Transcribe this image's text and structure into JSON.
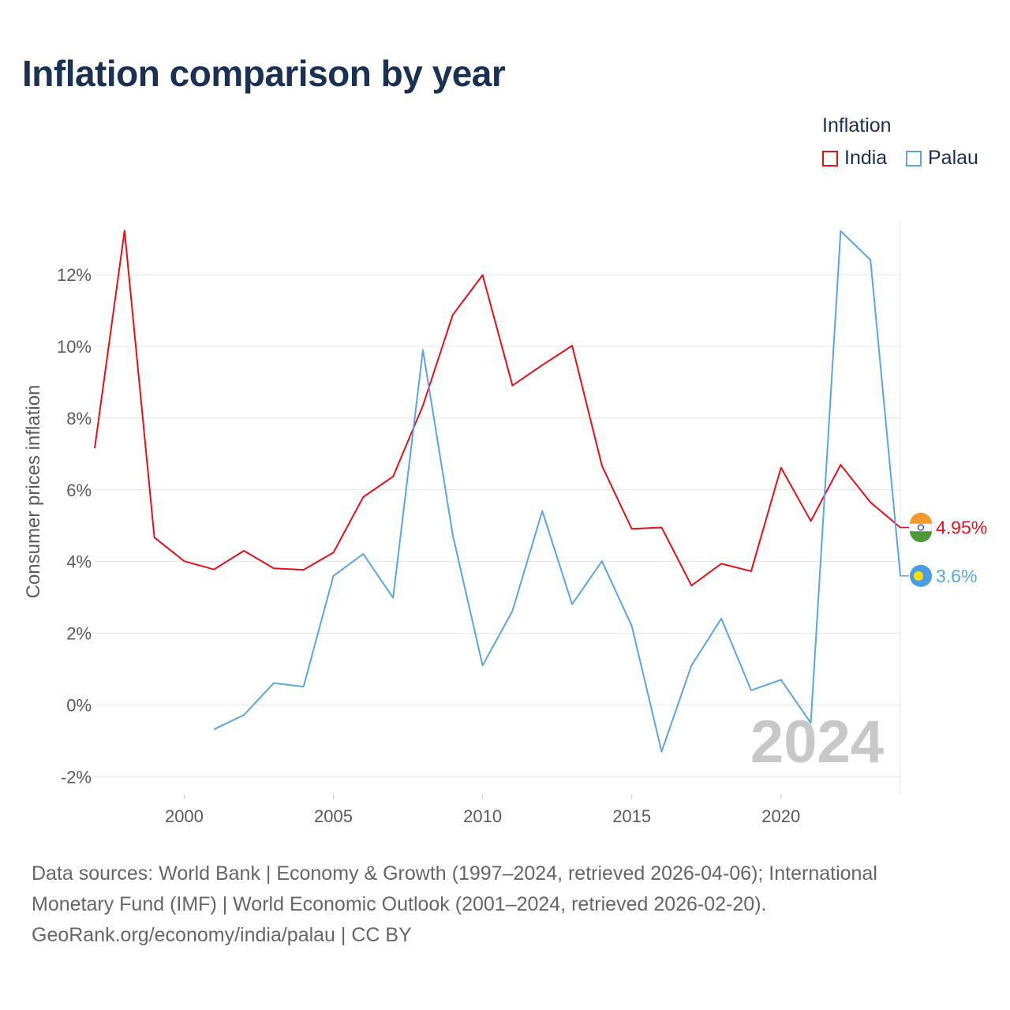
{
  "title": "Inflation comparison by year",
  "legend": {
    "title": "Inflation",
    "items": [
      {
        "label": "India",
        "color": "#e8101a"
      },
      {
        "label": "Palau",
        "color": "#5aa5e6"
      }
    ]
  },
  "year_watermark": "2024",
  "footer": {
    "line1": "Data sources: World Bank | Economy & Growth (1997–2024, retrieved 2026-04-06); International",
    "line2": "Monetary Fund (IMF) | World Economic Outlook (2001–2024, retrieved 2026-02-20).",
    "line3": "GeoRank.org/economy/india/palau | CC BY"
  },
  "chart_data": {
    "type": "line",
    "title": "Inflation comparison by year",
    "xlabel": "",
    "ylabel": "Consumer prices inflation",
    "xlim": [
      1997,
      2024
    ],
    "ylim": [
      -2.5,
      13.5
    ],
    "x_ticks": [
      2000,
      2005,
      2010,
      2015,
      2020
    ],
    "y_ticks": [
      {
        "value": -2,
        "label": "-2%"
      },
      {
        "value": 0,
        "label": "0%"
      },
      {
        "value": 2,
        "label": "2%"
      },
      {
        "value": 4,
        "label": "4%"
      },
      {
        "value": 6,
        "label": "6%"
      },
      {
        "value": 8,
        "label": "8%"
      },
      {
        "value": 10,
        "label": "10%"
      },
      {
        "value": 12,
        "label": "12%"
      }
    ],
    "grid": true,
    "series": [
      {
        "name": "India",
        "color": "#e8101a",
        "end_label": "4.95%",
        "x": [
          1997,
          1998,
          1999,
          2000,
          2001,
          2002,
          2003,
          2004,
          2005,
          2006,
          2007,
          2008,
          2009,
          2010,
          2011,
          2012,
          2013,
          2014,
          2015,
          2016,
          2017,
          2018,
          2019,
          2020,
          2021,
          2022,
          2023,
          2024
        ],
        "values": [
          7.16,
          13.23,
          4.67,
          4.01,
          3.78,
          4.3,
          3.81,
          3.77,
          4.25,
          5.8,
          6.37,
          8.35,
          10.88,
          11.99,
          8.91,
          9.48,
          10.02,
          6.67,
          4.91,
          4.95,
          3.33,
          3.94,
          3.73,
          6.62,
          5.13,
          6.7,
          5.65,
          4.95
        ]
      },
      {
        "name": "Palau",
        "color": "#5aa5e6",
        "end_label": "3.6%",
        "x": [
          2001,
          2002,
          2003,
          2004,
          2005,
          2006,
          2007,
          2008,
          2009,
          2010,
          2011,
          2012,
          2013,
          2014,
          2015,
          2016,
          2017,
          2018,
          2019,
          2020,
          2021,
          2022,
          2023,
          2024
        ],
        "values": [
          -0.68,
          -0.28,
          0.61,
          0.51,
          3.6,
          4.21,
          2.99,
          9.9,
          4.74,
          1.1,
          2.62,
          5.41,
          2.81,
          4.01,
          2.2,
          -1.3,
          1.1,
          2.41,
          0.41,
          0.7,
          -0.5,
          13.22,
          12.41,
          3.6
        ]
      }
    ]
  }
}
